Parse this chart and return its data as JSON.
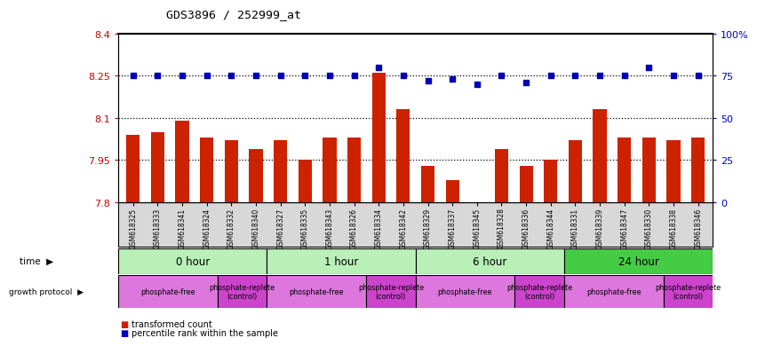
{
  "title": "GDS3896 / 252999_at",
  "samples": [
    "GSM618325",
    "GSM618333",
    "GSM618341",
    "GSM618324",
    "GSM618332",
    "GSM618340",
    "GSM618327",
    "GSM618335",
    "GSM618343",
    "GSM618326",
    "GSM618334",
    "GSM618342",
    "GSM618329",
    "GSM618337",
    "GSM618345",
    "GSM618328",
    "GSM618336",
    "GSM618344",
    "GSM618331",
    "GSM618339",
    "GSM618347",
    "GSM618330",
    "GSM618338",
    "GSM618346"
  ],
  "red_values": [
    8.04,
    8.05,
    8.09,
    8.03,
    8.02,
    7.99,
    8.02,
    7.95,
    8.03,
    8.03,
    8.26,
    8.13,
    7.93,
    7.88,
    7.8,
    7.99,
    7.93,
    7.95,
    8.02,
    8.13,
    8.03,
    8.03,
    8.02,
    8.03
  ],
  "blue_values": [
    75,
    75,
    75,
    75,
    75,
    75,
    75,
    75,
    75,
    75,
    80,
    75,
    72,
    73,
    70,
    75,
    71,
    75,
    75,
    75,
    75,
    80,
    75,
    75
  ],
  "ylim_left": [
    7.8,
    8.4
  ],
  "ylim_right": [
    0,
    100
  ],
  "yticks_left": [
    7.8,
    7.95,
    8.1,
    8.25,
    8.4
  ],
  "yticks_right": [
    0,
    25,
    50,
    75,
    100
  ],
  "ytick_labels_left": [
    "7.8",
    "7.95",
    "8.1",
    "8.25",
    "8.4"
  ],
  "ytick_labels_right": [
    "0",
    "25",
    "50",
    "75",
    "100%"
  ],
  "hlines": [
    7.95,
    8.1,
    8.25
  ],
  "time_groups": [
    {
      "label": "0 hour",
      "start": 0,
      "end": 6,
      "color": "#b8f0b8"
    },
    {
      "label": "1 hour",
      "start": 6,
      "end": 12,
      "color": "#b8f0b8"
    },
    {
      "label": "6 hour",
      "start": 12,
      "end": 18,
      "color": "#b8f0b8"
    },
    {
      "label": "24 hour",
      "start": 18,
      "end": 24,
      "color": "#44cc44"
    }
  ],
  "protocol_groups": [
    {
      "label": "phosphate-free",
      "start": 0,
      "end": 4,
      "color": "#dd77dd"
    },
    {
      "label": "phosphate-replete\n(control)",
      "start": 4,
      "end": 6,
      "color": "#cc44cc"
    },
    {
      "label": "phosphate-free",
      "start": 6,
      "end": 10,
      "color": "#dd77dd"
    },
    {
      "label": "phosphate-replete\n(control)",
      "start": 10,
      "end": 12,
      "color": "#cc44cc"
    },
    {
      "label": "phosphate-free",
      "start": 12,
      "end": 16,
      "color": "#dd77dd"
    },
    {
      "label": "phosphate-replete\n(control)",
      "start": 16,
      "end": 18,
      "color": "#cc44cc"
    },
    {
      "label": "phosphate-free",
      "start": 18,
      "end": 22,
      "color": "#dd77dd"
    },
    {
      "label": "phosphate-replete\n(control)",
      "start": 22,
      "end": 24,
      "color": "#cc44cc"
    }
  ],
  "bar_color": "#cc2200",
  "dot_color": "#0000bb",
  "bar_width": 0.55,
  "dot_size": 20,
  "background_color": "#ffffff",
  "plot_bg_color": "#ffffff",
  "tick_area_color": "#d8d8d8"
}
